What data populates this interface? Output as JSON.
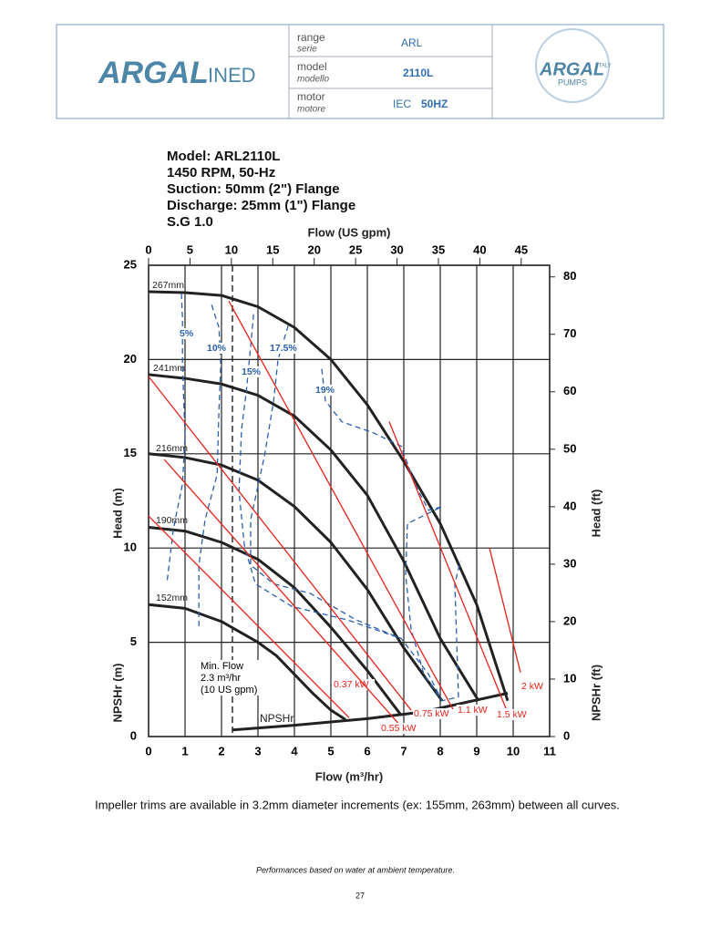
{
  "header": {
    "logo_left": [
      "ARGAL",
      "INED"
    ],
    "rows": [
      {
        "label": "range",
        "sub": "serie",
        "value": "ARL"
      },
      {
        "label": "model",
        "sub": "modello",
        "value": "2110L"
      },
      {
        "label": "motor",
        "sub": "motore",
        "value": "IEC",
        "value2": "50HZ"
      }
    ],
    "logo_right": [
      "ARGAL",
      "ITALY",
      "PUMPS"
    ]
  },
  "chart_data": {
    "type": "line",
    "info_lines": [
      "Model: ARL2110L",
      "1450 RPM, 50-Hz",
      "Suction: 50mm (2\") Flange",
      "Discharge: 25mm (1\") Flange",
      "S.G 1.0"
    ],
    "x_label": "Flow (m³/hr)",
    "x2_label": "Flow (US gpm)",
    "y_label": "Head (m)",
    "y_label_lower": "NPSHr (m)",
    "y2_label": "Head (ft)",
    "y2_label_lower": "NPSHr (ft)",
    "xlim": [
      0,
      11
    ],
    "xticks": [
      0,
      1,
      2,
      3,
      4,
      5,
      6,
      7,
      8,
      9,
      10,
      11
    ],
    "x2lim": [
      0,
      48.43
    ],
    "x2ticks": [
      0,
      5,
      10,
      15,
      20,
      25,
      30,
      35,
      40,
      45
    ],
    "ylim": [
      0,
      25
    ],
    "yticks": [
      0,
      5,
      10,
      15,
      20,
      25
    ],
    "y2lim": [
      0,
      82.02
    ],
    "y2ticks": [
      0,
      10,
      20,
      30,
      40,
      50,
      60,
      70,
      80
    ],
    "grid": true,
    "min_flow": {
      "x": 2.3,
      "lines": [
        "Min. Flow",
        "2.3 m³/hr",
        "(10 US gpm)"
      ]
    },
    "series": [
      {
        "name": "267mm",
        "color": "#222222",
        "x": [
          0,
          1,
          2,
          3,
          4,
          5,
          6,
          7,
          8,
          9,
          9.85
        ],
        "values": [
          23.6,
          23.55,
          23.4,
          22.8,
          21.7,
          20,
          17.6,
          14.6,
          11.3,
          7,
          1.9
        ]
      },
      {
        "name": "241mm",
        "color": "#222222",
        "x": [
          0,
          1,
          2,
          3,
          4,
          5,
          6,
          7,
          8,
          9.05
        ],
        "values": [
          19.2,
          19,
          18.7,
          18.1,
          17,
          15.2,
          12.8,
          9.3,
          5.2,
          1.9
        ]
      },
      {
        "name": "216mm",
        "color": "#222222",
        "x": [
          0,
          1,
          2,
          3,
          4,
          5,
          6,
          7,
          8.05
        ],
        "values": [
          15,
          14.8,
          14.4,
          13.6,
          12.2,
          10.3,
          7.8,
          4.7,
          1.9
        ]
      },
      {
        "name": "190mm",
        "color": "#222222",
        "x": [
          0,
          1,
          2,
          3,
          4,
          5,
          6,
          6.9
        ],
        "values": [
          11.1,
          10.9,
          10.3,
          9.4,
          7.9,
          5.8,
          3.5,
          1.2
        ]
      },
      {
        "name": "152mm",
        "color": "#222222",
        "x": [
          0,
          1,
          2,
          3,
          3.5,
          4,
          4.5,
          5,
          5.4
        ],
        "values": [
          7,
          6.8,
          6.1,
          5,
          4.3,
          3.3,
          2.3,
          1.4,
          0.9
        ]
      },
      {
        "name": "NPSHr",
        "color": "#222222",
        "x": [
          2.3,
          4,
          6,
          7.5,
          9.85
        ],
        "values": [
          0.35,
          0.6,
          0.95,
          1.3,
          2.3
        ]
      },
      {
        "name": "5%",
        "color": "#2b5fad",
        "dash": true,
        "x": [
          0.9,
          0.93,
          0.93,
          1,
          0.93,
          0.68,
          0.5
        ],
        "values": [
          23.5,
          22.2,
          19.7,
          15.9,
          13.4,
          11,
          8.1
        ]
      },
      {
        "name": "10%",
        "color": "#2b5fad",
        "dash": true,
        "x": [
          1.73,
          1.93,
          1.98,
          1.93,
          1.88,
          1.55,
          1.38,
          1.38
        ],
        "values": [
          22.9,
          21.7,
          19.7,
          17.3,
          13.9,
          11.5,
          9.1,
          5.7
        ]
      },
      {
        "name": "15%",
        "color": "#2b5fad",
        "dash": true,
        "x": [
          2.88,
          2.8,
          2.68,
          2.55,
          2.48,
          2.63,
          2.93,
          3.93,
          5.43,
          6.93
        ],
        "values": [
          22.4,
          20.7,
          18.3,
          16.3,
          13,
          10.1,
          8.1,
          6.9,
          6.2,
          5.2
        ]
      },
      {
        "name": "17.5%",
        "color": "#2b5fad",
        "dash": true,
        "x": [
          3.83,
          3.55,
          3.43,
          3.18,
          2.8,
          2.8,
          3.43,
          4.43,
          5.68,
          6.93,
          7.68,
          8.05
        ],
        "values": [
          21.8,
          20,
          17.8,
          14.9,
          11.5,
          9.1,
          8.1,
          7.6,
          6.2,
          5.2,
          3.3,
          1.9
        ]
      },
      {
        "name": "19%",
        "color": "#2b5fad",
        "dash": true,
        "x": [
          4.75,
          4.85,
          5.3,
          6.18,
          6.93,
          7.3,
          7.68,
          8.05,
          7.1,
          7.05,
          7.2,
          7.55,
          8.05,
          8.5,
          8.4,
          8.55
        ],
        "values": [
          19.5,
          17.8,
          16.7,
          16.1,
          15.4,
          13.4,
          12,
          12.2,
          11.3,
          8.6,
          5.7,
          3.3,
          1.9,
          2.1,
          8.1,
          9.3
        ]
      },
      {
        "name": "0.37 kW",
        "color": "#e8231b",
        "x": [
          0,
          5.5
        ],
        "values": [
          11.7,
          1
        ]
      },
      {
        "name": "0.55 kW",
        "color": "#e8231b",
        "x": [
          0.43,
          6.85
        ],
        "values": [
          14.7,
          0.7
        ]
      },
      {
        "name": "0.75 kW",
        "color": "#e8231b",
        "x": [
          0,
          7.2
        ],
        "values": [
          19.1,
          1.4
        ]
      },
      {
        "name": "1.1 kW",
        "color": "#e8231b",
        "x": [
          2.2,
          8.35
        ],
        "values": [
          23.1,
          1.45
        ]
      },
      {
        "name": "1.5 kW",
        "color": "#e8231b",
        "x": [
          6.6,
          9.8
        ],
        "values": [
          16.7,
          1.5
        ]
      },
      {
        "name": "2 kW",
        "color": "#e8231b",
        "x": [
          9.35,
          10.2
        ],
        "values": [
          10,
          3.4
        ]
      }
    ]
  },
  "footer": {
    "note": "Impeller trims are available in 3.2mm diameter increments (ex: 155mm, 263mm) between all curves.",
    "performance": "Performances based on water at ambient temperature.",
    "page": "27"
  }
}
